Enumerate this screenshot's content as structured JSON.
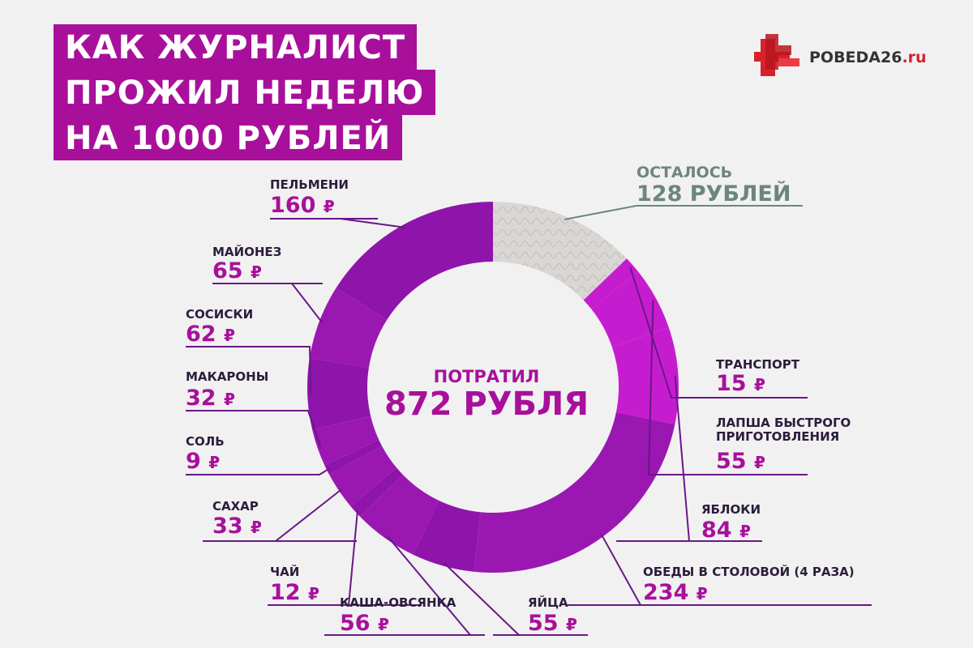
{
  "title": {
    "lines": [
      "КАК ЖУРНАЛИСТ",
      "ПРОЖИЛ НЕДЕЛЮ",
      "НА 1000 РУБЛЕЙ"
    ]
  },
  "logo": {
    "main": "POBEDA26",
    "suffix": ".ru"
  },
  "center": {
    "label": "ПОТРАТИЛ",
    "value": "872 РУБЛЯ"
  },
  "remaining": {
    "label": "ОСТАЛОСЬ",
    "value": "128 РУБЛЕЙ"
  },
  "currency_symbol": "₽",
  "colors": {
    "accent": "#a8109b",
    "dark_purple": "#8a15a6",
    "magenta": "#c61ccf",
    "remaining": "#6d8580",
    "remaining_fill": "#d9d6d4"
  },
  "chart_data": {
    "type": "pie",
    "total": 1000,
    "slices": [
      {
        "name": "ОСТАЛОСЬ",
        "value": 128
      },
      {
        "name": "ТРАНСПОРТ",
        "value": 15
      },
      {
        "name": "ЛАПША БЫСТРОГО ПРИГОТОВЛЕНИЯ",
        "value": 55
      },
      {
        "name": "ЯБЛОКИ",
        "value": 84
      },
      {
        "name": "ОБЕДЫ В СТОЛОВОЙ (4 РАЗА)",
        "value": 234
      },
      {
        "name": "ЯЙЦА",
        "value": 55
      },
      {
        "name": "КАША-ОВСЯНКА",
        "value": 56
      },
      {
        "name": "ЧАЙ",
        "value": 12
      },
      {
        "name": "САХАР",
        "value": 33
      },
      {
        "name": "СОЛЬ",
        "value": 9
      },
      {
        "name": "МАКАРОНЫ",
        "value": 32
      },
      {
        "name": "СОСИСКИ",
        "value": 62
      },
      {
        "name": "МАЙОНЕЗ",
        "value": 65
      },
      {
        "name": "ПЕЛЬМЕНИ",
        "value": 160
      }
    ]
  }
}
